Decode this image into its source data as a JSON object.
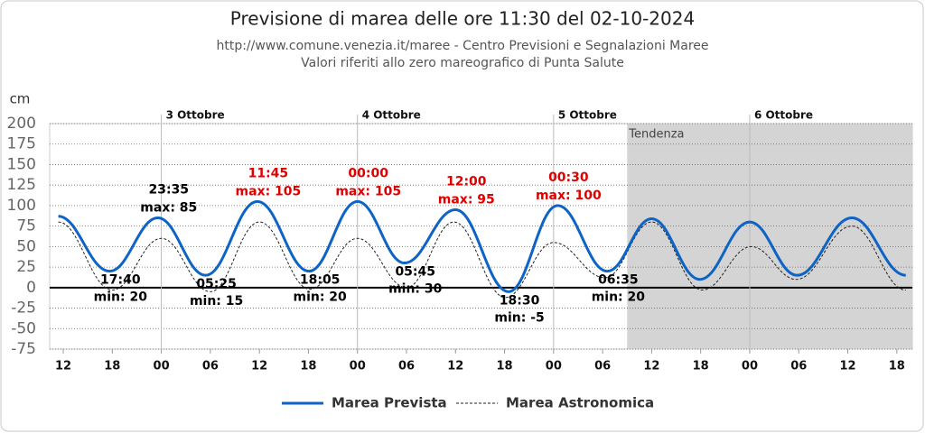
{
  "chart_data": {
    "type": "line",
    "title": "Previsione di marea delle ore 11:30 del 02-10-2024",
    "subtitle": [
      "http://www.comune.venezia.it/maree - Centro Previsioni e Segnalazioni Maree",
      "Valori riferiti allo zero mareografico di Punta Salute"
    ],
    "y_label": "cm",
    "ylim": [
      -75,
      200
    ],
    "yticks": [
      -75,
      -50,
      -25,
      0,
      25,
      50,
      75,
      100,
      125,
      150,
      175,
      200
    ],
    "xlim": [
      10.34,
      115.9
    ],
    "xticks": [
      {
        "value": 12,
        "label": "12"
      },
      {
        "value": 18,
        "label": "18"
      },
      {
        "value": 24,
        "label": "00"
      },
      {
        "value": 30,
        "label": "06"
      },
      {
        "value": 36,
        "label": "12"
      },
      {
        "value": 42,
        "label": "18"
      },
      {
        "value": 48,
        "label": "00"
      },
      {
        "value": 54,
        "label": "06"
      },
      {
        "value": 60,
        "label": "12"
      },
      {
        "value": 66,
        "label": "18"
      },
      {
        "value": 72,
        "label": "00"
      },
      {
        "value": 78,
        "label": "06"
      },
      {
        "value": 84,
        "label": "12"
      },
      {
        "value": 90,
        "label": "18"
      },
      {
        "value": 96,
        "label": "00"
      },
      {
        "value": 102,
        "label": "06"
      },
      {
        "value": 108,
        "label": "12"
      },
      {
        "value": 114,
        "label": "18"
      }
    ],
    "day_ticks": [
      {
        "value": 24,
        "label": "3 Ottobre"
      },
      {
        "value": 48,
        "label": "4 Ottobre"
      },
      {
        "value": 72,
        "label": "5 Ottobre"
      },
      {
        "value": 96,
        "label": "6 Ottobre"
      }
    ],
    "tendency_start": 81,
    "tendency_label": "Tendenza",
    "grid": true,
    "series": [
      {
        "name": "Marea Prevista",
        "color": "#0d63c6",
        "style": "solid",
        "x": [
          11.4,
          17.67,
          23.58,
          29.42,
          35.75,
          42.08,
          48,
          53.75,
          60,
          66.5,
          72.5,
          78.58,
          84,
          89.9,
          96,
          101.8,
          108.5,
          115.1
        ],
        "values": [
          87,
          20,
          85,
          15,
          105,
          20,
          105,
          30,
          95,
          -5,
          100,
          20,
          84,
          10,
          80,
          15,
          85,
          15
        ]
      },
      {
        "name": "Marea Astronomica",
        "color": "#222222",
        "style": "dashed",
        "x": [
          11.4,
          18,
          24,
          30,
          36,
          42.2,
          48,
          54,
          59.8,
          66.1,
          72,
          78.3,
          84,
          90.2,
          96.2,
          101.7,
          108.5,
          115.1
        ],
        "values": [
          80,
          -3,
          60,
          -5,
          80,
          -2,
          60,
          0,
          80,
          -12,
          55,
          12,
          80,
          -3,
          50,
          10,
          75,
          -3
        ]
      }
    ],
    "annotations": [
      {
        "time": "17:40",
        "label": "min: 20",
        "color": "#000000"
      },
      {
        "time": "23:35",
        "label": "max: 85",
        "color": "#000000"
      },
      {
        "time": "05:25",
        "label": "min: 15",
        "color": "#000000"
      },
      {
        "time": "11:45",
        "label": "max: 105",
        "color": "#e00000"
      },
      {
        "time": "18:05",
        "label": "min: 20",
        "color": "#000000"
      },
      {
        "time": "00:00",
        "label": "max: 105",
        "color": "#e00000"
      },
      {
        "time": "05:45",
        "label": "min: 30",
        "color": "#000000"
      },
      {
        "time": "12:00",
        "label": "max: 95",
        "color": "#e00000"
      },
      {
        "time": "18:30",
        "label": "min: -5",
        "color": "#000000"
      },
      {
        "time": "00:30",
        "label": "max: 100",
        "color": "#e00000"
      },
      {
        "time": "06:35",
        "label": "min: 20",
        "color": "#000000"
      }
    ]
  }
}
